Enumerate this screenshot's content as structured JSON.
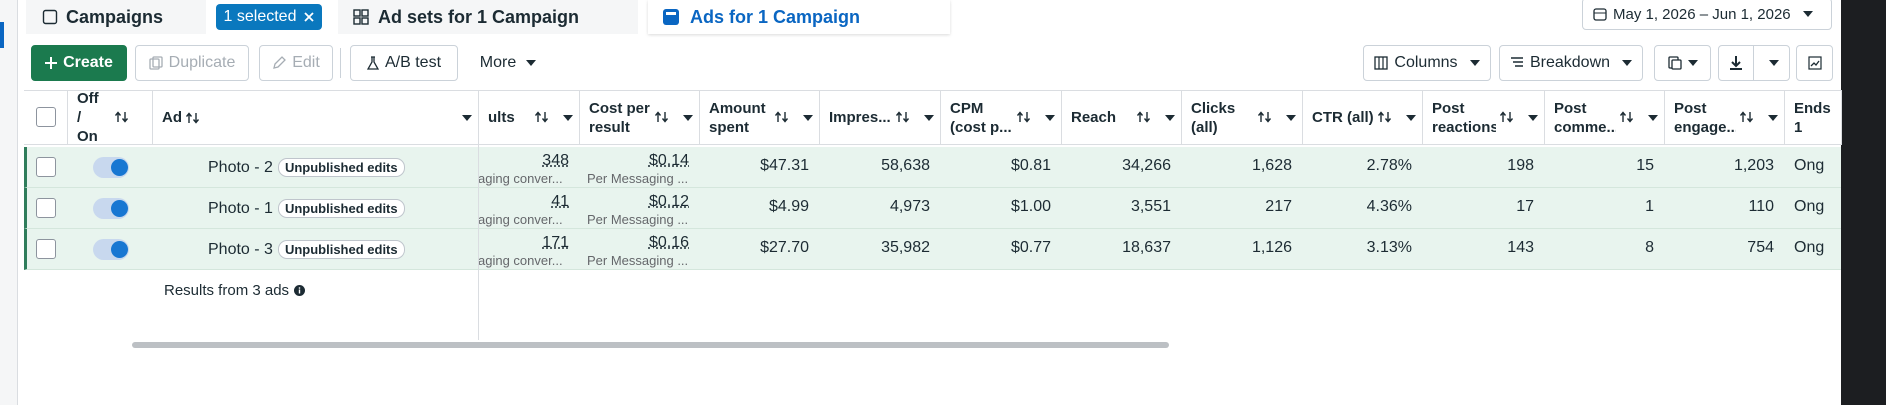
{
  "tabs": {
    "campaigns": "Campaigns",
    "selected": "1 selected",
    "ad_sets": "Ad sets for 1 Campaign",
    "ads": "Ads for 1 Campaign"
  },
  "date_range": "May 1, 2026 – Jun 1, 2026",
  "toolbar": {
    "create": "Create",
    "duplicate": "Duplicate",
    "edit": "Edit",
    "ab_test": "A/B test",
    "more": "More",
    "columns": "Columns",
    "breakdown": "Breakdown"
  },
  "table": {
    "columns": [
      "Off / On",
      "Ad",
      "ults",
      "Cost per result",
      "Amount spent",
      "Impres...",
      "CPM (cost p...",
      "Reach",
      "Clicks (all)",
      "CTR (all)",
      "Post reactions",
      "Post comme...",
      "Post engage...",
      "Ends 1"
    ],
    "rows": [
      {
        "name": "Photo - 2",
        "badge": "Unpublished edits",
        "results": "348",
        "results_sub": "aging conver...",
        "cost": "$0.14",
        "cost_sub": "Per Messaging ...",
        "amount": "$47.31",
        "impressions": "58,638",
        "cpm": "$0.81",
        "reach": "34,266",
        "clicks": "1,628",
        "ctr": "2.78%",
        "reactions": "198",
        "comments": "15",
        "engagement": "1,203",
        "ends": "Ong"
      },
      {
        "name": "Photo - 1",
        "badge": "Unpublished edits",
        "results": "41",
        "results_sub": "aging conver...",
        "cost": "$0.12",
        "cost_sub": "Per Messaging ...",
        "amount": "$4.99",
        "impressions": "4,973",
        "cpm": "$1.00",
        "reach": "3,551",
        "clicks": "217",
        "ctr": "4.36%",
        "reactions": "17",
        "comments": "1",
        "engagement": "110",
        "ends": "Ong"
      },
      {
        "name": "Photo - 3",
        "badge": "Unpublished edits",
        "results": "171",
        "results_sub": "aging conver...",
        "cost": "$0.16",
        "cost_sub": "Per Messaging ...",
        "amount": "$27.70",
        "impressions": "35,982",
        "cpm": "$0.77",
        "reach": "18,637",
        "clicks": "1,126",
        "ctr": "3.13%",
        "reactions": "143",
        "comments": "8",
        "engagement": "754",
        "ends": "Ong"
      }
    ]
  },
  "footer": "Results from 3 ads"
}
